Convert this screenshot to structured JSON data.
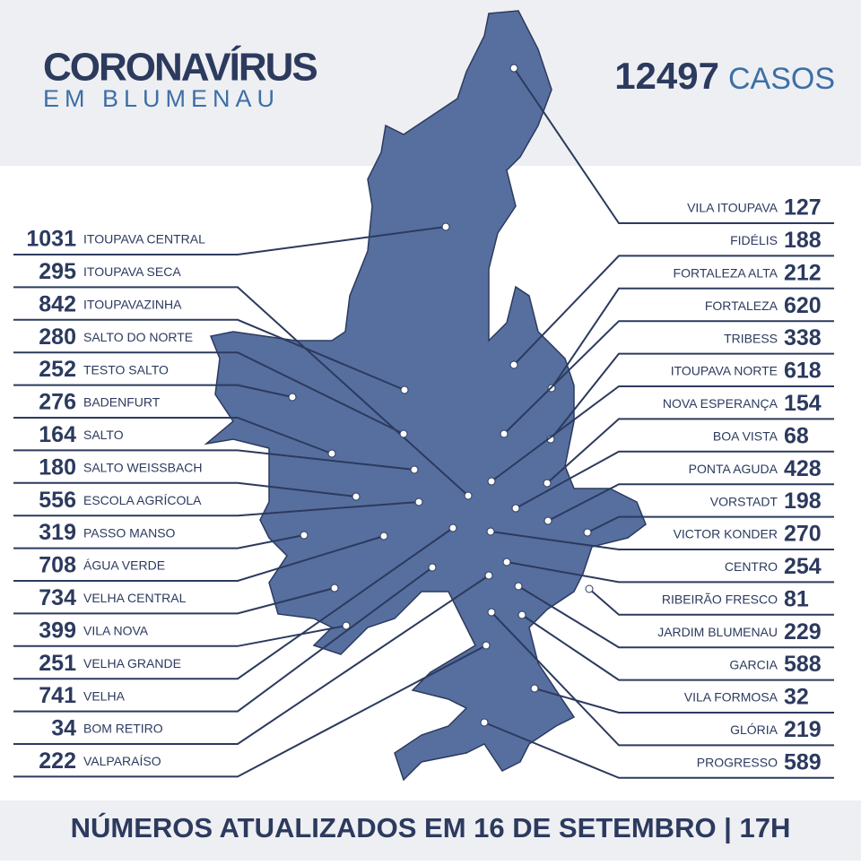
{
  "header": {
    "title": "CORONAVÍRUS",
    "subtitle": "EM BLUMENAU",
    "total": 12497,
    "total_label": "CASOS"
  },
  "left": [
    {
      "count": 1031,
      "name": "ITOUPAVA CENTRAL"
    },
    {
      "count": 295,
      "name": "ITOUPAVA SECA"
    },
    {
      "count": 842,
      "name": "ITOUPAVAZINHA"
    },
    {
      "count": 280,
      "name": "SALTO DO NORTE"
    },
    {
      "count": 252,
      "name": "TESTO SALTO"
    },
    {
      "count": 276,
      "name": "BADENFURT"
    },
    {
      "count": 164,
      "name": "SALTO"
    },
    {
      "count": 180,
      "name": "SALTO WEISSBACH"
    },
    {
      "count": 556,
      "name": "ESCOLA AGRÍCOLA"
    },
    {
      "count": 319,
      "name": "PASSO MANSO"
    },
    {
      "count": 708,
      "name": "ÁGUA VERDE"
    },
    {
      "count": 734,
      "name": "VELHA CENTRAL"
    },
    {
      "count": 399,
      "name": "VILA NOVA"
    },
    {
      "count": 251,
      "name": "VELHA GRANDE"
    },
    {
      "count": 741,
      "name": "VELHA"
    },
    {
      "count": 34,
      "name": "BOM RETIRO"
    },
    {
      "count": 222,
      "name": "VALPARAÍSO"
    }
  ],
  "right": [
    {
      "name": "VILA ITOUPAVA",
      "count": 127
    },
    {
      "name": "FIDÉLIS",
      "count": 188
    },
    {
      "name": "FORTALEZA ALTA",
      "count": 212
    },
    {
      "name": "FORTALEZA",
      "count": 620
    },
    {
      "name": "TRIBESS",
      "count": 338
    },
    {
      "name": "ITOUPAVA NORTE",
      "count": 618
    },
    {
      "name": "NOVA ESPERANÇA",
      "count": 154
    },
    {
      "name": "BOA VISTA",
      "count": 68
    },
    {
      "name": "PONTA AGUDA",
      "count": 428
    },
    {
      "name": "VORSTADT",
      "count": 198
    },
    {
      "name": "VICTOR KONDER",
      "count": 270
    },
    {
      "name": "CENTRO",
      "count": 254
    },
    {
      "name": "RIBEIRÃO FRESCO",
      "count": 81
    },
    {
      "name": "JARDIM BLUMENAU",
      "count": 229
    },
    {
      "name": "GARCIA",
      "count": 588
    },
    {
      "name": "VILA FORMOSA",
      "count": 32
    },
    {
      "name": "GLÓRIA",
      "count": 219
    },
    {
      "name": "PROGRESSO",
      "count": 589
    }
  ],
  "footer": "NÚMEROS ATUALIZADOS EM 16 DE SETEMBRO | 17H"
}
